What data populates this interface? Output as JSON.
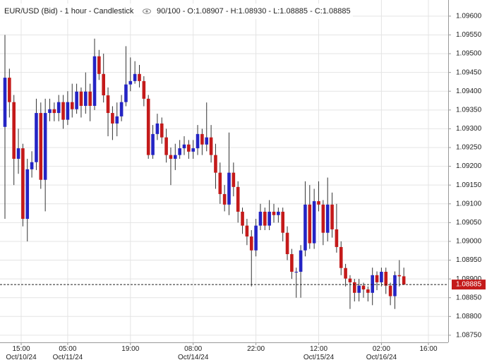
{
  "chart_data": {
    "type": "candlestick",
    "title": "EUR/USD (Bid) - 1 hour - Candlestick",
    "info": "90/100 - O:1.08907 - H:1.08930 - L:1.08885 - C:1.08885",
    "up_color": "#2424c4",
    "down_color": "#c41a1a",
    "grid": true,
    "categories": [
      "15:00\nOct/10/24",
      null,
      null,
      null,
      null,
      null,
      null,
      null,
      null,
      null,
      null,
      null,
      null,
      null,
      "05:00\nOct/11/24",
      null,
      null,
      null,
      null,
      null,
      null,
      null,
      null,
      null,
      null,
      null,
      null,
      null,
      "19:00",
      null,
      null,
      null,
      null,
      null,
      null,
      null,
      null,
      null,
      null,
      null,
      null,
      null,
      "08:00\nOct/14/24",
      null,
      null,
      null,
      null,
      null,
      null,
      null,
      null,
      null,
      null,
      null,
      null,
      null,
      "22:00",
      null,
      null,
      null,
      null,
      null,
      null,
      null,
      null,
      null,
      null,
      null,
      null,
      null,
      "12:00\nOct/15/24",
      null,
      null,
      null,
      null,
      null,
      null,
      null,
      null,
      null,
      null,
      null,
      null,
      null,
      "02:00\nOct/16/24",
      null,
      null,
      null,
      null,
      null,
      null,
      null,
      null,
      null,
      null,
      null,
      null,
      null,
      "16:00"
    ],
    "open": [
      1.09305,
      1.09436,
      1.09371,
      1.0922,
      1.09248,
      1.0906,
      1.09192,
      1.09211,
      1.09342,
      1.09164,
      1.09342,
      1.09352,
      1.09342,
      1.09371,
      1.09324,
      1.09371,
      1.09352,
      1.09399,
      1.09361,
      1.09399,
      1.09361,
      1.09493,
      1.09446,
      1.09389,
      1.09342,
      1.09314,
      1.09333,
      1.09371,
      1.09418,
      1.09427,
      1.09446,
      1.09427,
      1.0938,
      1.0923,
      1.09286,
      1.09314,
      1.09277,
      1.0923,
      1.0922,
      1.0923,
      1.09248,
      1.09258,
      1.09239,
      1.09248,
      1.09286,
      1.09258,
      1.09277,
      1.0923,
      1.09183,
      1.09126,
      1.09098,
      1.09183,
      1.09145,
      1.09079,
      1.09042,
      1.09013,
      1.08976,
      1.09042,
      1.09079,
      1.09042,
      1.09079,
      1.0907,
      1.09079,
      1.09023,
      1.08966,
      1.08919,
      1.08919,
      1.08976,
      1.09098,
      1.08995,
      1.09107,
      1.09098,
      1.09023,
      1.09098,
      1.09032,
      1.08985,
      1.08929,
      1.08901,
      1.08891,
      1.08863,
      1.08882,
      1.08872,
      1.08863,
      1.0891,
      1.08891,
      1.08919,
      1.08882,
      1.08854,
      1.0891,
      1.08907,
      null,
      null,
      null,
      null,
      null,
      null,
      null,
      null,
      null
    ],
    "high": [
      1.0955,
      1.0946,
      1.0939,
      1.093,
      1.0926,
      1.0922,
      1.0924,
      1.0938,
      1.0937,
      1.0938,
      1.0938,
      1.0937,
      1.0939,
      1.0939,
      1.094,
      1.0942,
      1.0942,
      1.0941,
      1.0945,
      1.0942,
      1.0954,
      1.0951,
      1.095,
      1.0941,
      1.0936,
      1.0937,
      1.0939,
      1.0952,
      1.0949,
      1.0948,
      1.0947,
      1.0944,
      1.0939,
      1.0931,
      1.0934,
      1.0933,
      1.093,
      1.0925,
      1.0926,
      1.0927,
      1.0928,
      1.0927,
      1.0927,
      1.0931,
      1.093,
      1.0937,
      1.0931,
      1.0926,
      1.0921,
      1.0915,
      1.0929,
      1.0921,
      1.0916,
      1.0909,
      1.0906,
      1.0903,
      1.0906,
      1.091,
      1.0909,
      1.0911,
      1.091,
      1.0909,
      1.0909,
      1.0904,
      1.0898,
      1.0893,
      1.0899,
      1.0916,
      1.0915,
      1.0914,
      1.0916,
      1.0911,
      1.0917,
      1.0913,
      1.091,
      1.09,
      1.0894,
      1.0891,
      1.089,
      1.089,
      1.0889,
      1.0888,
      1.0893,
      1.0892,
      1.0893,
      1.0893,
      1.0889,
      1.0892,
      1.0895,
      1.0893,
      null,
      null,
      null,
      null,
      null,
      null,
      null,
      null,
      null
    ],
    "low": [
      1.0906,
      1.0933,
      1.0915,
      1.0918,
      1.0904,
      1.09,
      1.0917,
      1.0919,
      1.0914,
      1.0908,
      1.0932,
      1.0932,
      1.0932,
      1.093,
      1.0931,
      1.0933,
      1.0934,
      1.0933,
      1.0934,
      1.0932,
      1.0935,
      1.0943,
      1.0937,
      1.0928,
      1.0927,
      1.0928,
      1.0932,
      1.0936,
      1.094,
      1.0942,
      1.0941,
      1.0936,
      1.0922,
      1.0922,
      1.0927,
      1.0926,
      1.0921,
      1.0915,
      1.0919,
      1.0922,
      1.0923,
      1.0922,
      1.0922,
      1.0923,
      1.0923,
      1.0924,
      1.0921,
      1.0914,
      1.091,
      1.0908,
      1.0907,
      1.0912,
      1.0905,
      1.0902,
      1.0899,
      1.0888,
      1.0896,
      1.0903,
      1.0903,
      1.0903,
      1.0905,
      1.0905,
      1.09,
      1.0895,
      1.089,
      1.0885,
      1.0885,
      1.0896,
      1.0898,
      1.0898,
      1.0908,
      1.0899,
      1.09,
      1.0901,
      1.0897,
      1.0891,
      1.0888,
      1.0882,
      1.0884,
      1.0884,
      1.0885,
      1.0884,
      1.0883,
      1.0887,
      1.0888,
      1.0886,
      1.0883,
      1.0882,
      1.0888,
      1.08885,
      null,
      null,
      null,
      null,
      null,
      null,
      null,
      null,
      null
    ],
    "close": [
      1.09436,
      1.09371,
      1.0922,
      1.09248,
      1.0906,
      1.09192,
      1.09211,
      1.09342,
      1.09164,
      1.09342,
      1.09352,
      1.09342,
      1.09371,
      1.09324,
      1.09371,
      1.09352,
      1.09399,
      1.09361,
      1.09399,
      1.09361,
      1.09493,
      1.09446,
      1.09389,
      1.09342,
      1.09314,
      1.09333,
      1.09371,
      1.09418,
      1.09427,
      1.09446,
      1.09427,
      1.0938,
      1.0923,
      1.09286,
      1.09314,
      1.09277,
      1.0923,
      1.0922,
      1.0923,
      1.09248,
      1.09258,
      1.09239,
      1.09248,
      1.09286,
      1.09258,
      1.09277,
      1.0923,
      1.09183,
      1.09126,
      1.09098,
      1.09183,
      1.09145,
      1.09079,
      1.09042,
      1.09013,
      1.08976,
      1.09042,
      1.09079,
      1.09042,
      1.09079,
      1.0907,
      1.09079,
      1.09023,
      1.08966,
      1.08919,
      1.08919,
      1.08976,
      1.09098,
      1.08995,
      1.09107,
      1.09098,
      1.09023,
      1.09098,
      1.09032,
      1.08985,
      1.08929,
      1.08901,
      1.08891,
      1.08863,
      1.08882,
      1.08872,
      1.08863,
      1.0891,
      1.08891,
      1.08919,
      1.08882,
      1.08854,
      1.0891,
      1.08907,
      1.08885,
      null,
      null,
      null,
      null,
      null,
      null,
      null,
      null,
      null
    ],
    "last_price": {
      "value": 1.08885,
      "label": "1.08885"
    },
    "ylim": [
      1.08731,
      1.09643
    ],
    "yticks": [
      {
        "value": 1.096,
        "label": "1.09600"
      },
      {
        "value": 1.0955,
        "label": "1.09550"
      },
      {
        "value": 1.095,
        "label": "1.09500"
      },
      {
        "value": 1.0945,
        "label": "1.09450"
      },
      {
        "value": 1.094,
        "label": "1.09400"
      },
      {
        "value": 1.0935,
        "label": "1.09350"
      },
      {
        "value": 1.093,
        "label": "1.09300"
      },
      {
        "value": 1.0925,
        "label": "1.09250"
      },
      {
        "value": 1.092,
        "label": "1.09200"
      },
      {
        "value": 1.0915,
        "label": "1.09150"
      },
      {
        "value": 1.091,
        "label": "1.09100"
      },
      {
        "value": 1.0905,
        "label": "1.09050"
      },
      {
        "value": 1.09,
        "label": "1.09000"
      },
      {
        "value": 1.0895,
        "label": "1.08950"
      },
      {
        "value": 1.089,
        "label": "1.08900"
      },
      {
        "value": 1.0885,
        "label": "1.08850"
      },
      {
        "value": 1.088,
        "label": "1.08800"
      },
      {
        "value": 1.0875,
        "label": "1.08750"
      }
    ]
  }
}
